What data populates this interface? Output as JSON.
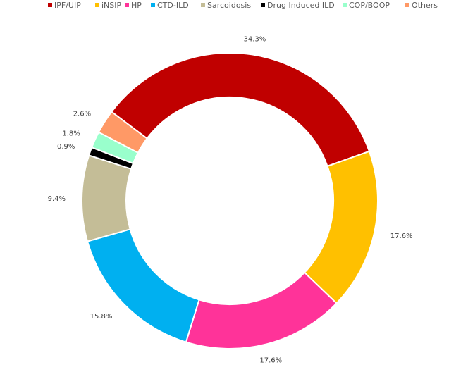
{
  "chart_data": {
    "type": "pie",
    "variant": "donut",
    "title": "",
    "legend_position": "top",
    "categories": [
      "IPF/UIP",
      "iNSIP",
      "HP",
      "CTD-ILD",
      "Sarcoidosis",
      "Drug Induced ILD",
      "COP/BOOP",
      "Others"
    ],
    "values": [
      34.3,
      17.6,
      17.6,
      15.8,
      9.4,
      0.9,
      1.8,
      2.6
    ],
    "labels": [
      "34.3%",
      "17.6%",
      "17.6%",
      "15.8%",
      "9.4%",
      "0.9%",
      "1.8%",
      "2.6%"
    ],
    "colors": [
      "#C00000",
      "#FFC000",
      "#FF3399",
      "#00B0F0",
      "#C4BD97",
      "#000000",
      "#99FFCC",
      "#FF9966"
    ]
  }
}
